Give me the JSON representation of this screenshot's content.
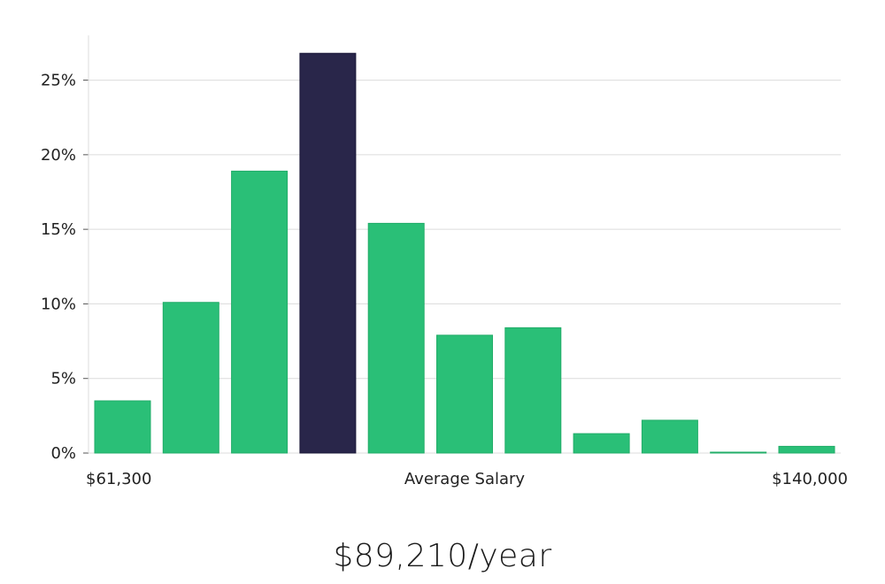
{
  "chart_data": {
    "type": "bar",
    "title": "",
    "xlabel": "Average Salary",
    "ylabel": "",
    "x_min_label": "$61,300",
    "x_max_label": "$140,000",
    "ylim": [
      0,
      28
    ],
    "yticks": [
      0,
      5,
      10,
      15,
      20,
      25
    ],
    "ytick_labels": [
      "0%",
      "5%",
      "10%",
      "15%",
      "20%",
      "25%"
    ],
    "values": [
      3.5,
      10.1,
      18.9,
      26.8,
      15.4,
      7.9,
      8.4,
      1.3,
      2.2,
      0.05,
      0.45
    ],
    "highlight_index": 3,
    "bar_color": "#2abf77",
    "highlight_color": "#29264a",
    "grid": true
  },
  "headline": {
    "salary_text": "$89,210/year"
  }
}
